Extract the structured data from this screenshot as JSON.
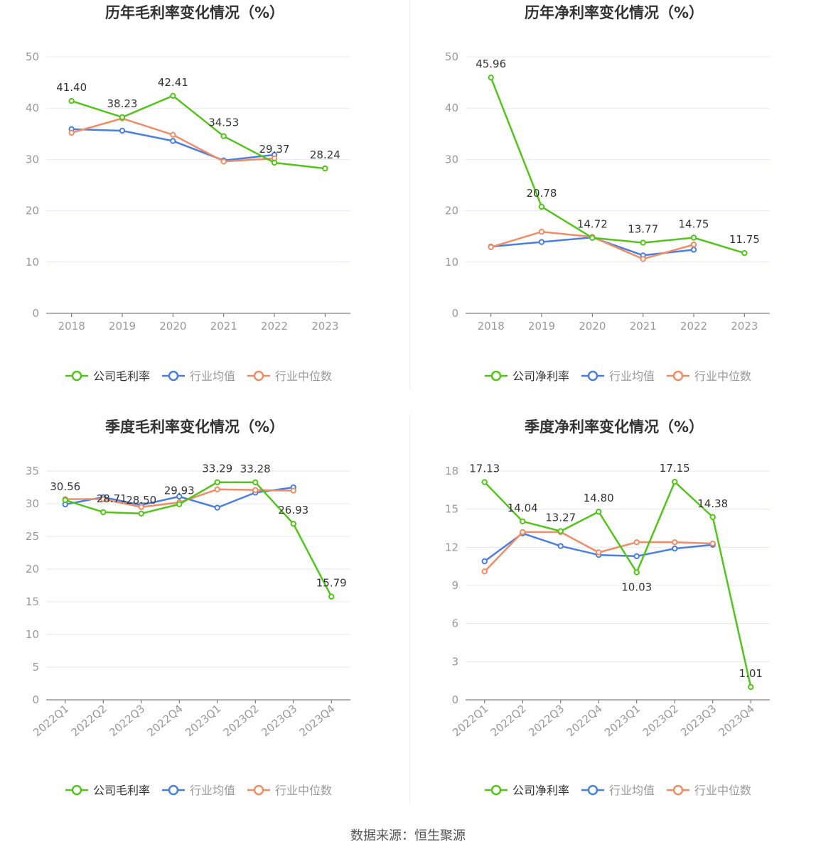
{
  "footer": {
    "source": "数据来源：恒生聚源"
  },
  "colors": {
    "company": "#52c41a",
    "avg": "#4a7fe0",
    "median": "#f08c66",
    "grid": "#e6e9f2",
    "axis": "#666666",
    "tick": "#999999",
    "label": "#333333"
  },
  "chart_data": [
    {
      "type": "line",
      "title": "历年毛利率变化情况（%）",
      "categories": [
        "2018",
        "2019",
        "2020",
        "2021",
        "2022",
        "2023"
      ],
      "ylim": [
        0,
        50
      ],
      "yticks": [
        0,
        10,
        20,
        30,
        40,
        50
      ],
      "series": [
        {
          "name": "公司毛利率",
          "values": [
            41.4,
            38.23,
            42.41,
            34.53,
            29.37,
            28.24
          ],
          "labels": [
            "41.40",
            "38.23",
            "42.41",
            "34.53",
            "29.37",
            "28.24"
          ]
        },
        {
          "name": "行业均值",
          "values": [
            35.9,
            35.6,
            33.6,
            29.8,
            30.9,
            null
          ]
        },
        {
          "name": "行业中位数",
          "values": [
            35.2,
            38.0,
            34.8,
            29.6,
            30.2,
            null
          ]
        }
      ],
      "legend": "bottom"
    },
    {
      "type": "line",
      "title": "历年净利率变化情况（%）",
      "categories": [
        "2018",
        "2019",
        "2020",
        "2021",
        "2022",
        "2023"
      ],
      "ylim": [
        0,
        50
      ],
      "yticks": [
        0,
        10,
        20,
        30,
        40,
        50
      ],
      "series": [
        {
          "name": "公司净利率",
          "values": [
            45.96,
            20.78,
            14.72,
            13.77,
            14.75,
            11.75
          ],
          "labels": [
            "45.96",
            "20.78",
            "14.72",
            "13.77",
            "14.75",
            "11.75"
          ]
        },
        {
          "name": "行业均值",
          "values": [
            13.0,
            13.9,
            14.8,
            11.3,
            12.4,
            null
          ]
        },
        {
          "name": "行业中位数",
          "values": [
            12.9,
            15.9,
            14.9,
            10.6,
            13.4,
            null
          ]
        }
      ],
      "legend": "bottom"
    },
    {
      "type": "line",
      "title": "季度毛利率变化情况（%）",
      "categories": [
        "2022Q1",
        "2022Q2",
        "2022Q3",
        "2022Q4",
        "2023Q1",
        "2023Q2",
        "2023Q3",
        "2023Q4"
      ],
      "ylim": [
        0,
        35
      ],
      "yticks": [
        0,
        5,
        10,
        15,
        20,
        25,
        30,
        35
      ],
      "series": [
        {
          "name": "公司毛利率",
          "values": [
            30.56,
            28.71,
            28.5,
            29.93,
            33.29,
            33.28,
            26.93,
            15.79
          ],
          "labels": [
            "30.56",
            "28.71",
            "28.50",
            "29.93",
            "33.29",
            "33.28",
            "26.93",
            "15.79"
          ]
        },
        {
          "name": "行业均值",
          "values": [
            29.9,
            31.0,
            29.8,
            31.1,
            29.4,
            31.7,
            32.5,
            null
          ]
        },
        {
          "name": "行业中位数",
          "values": [
            30.7,
            30.7,
            29.5,
            30.2,
            32.2,
            32.1,
            32.0,
            null
          ]
        }
      ],
      "legend": "bottom"
    },
    {
      "type": "line",
      "title": "季度净利率变化情况（%）",
      "categories": [
        "2022Q1",
        "2022Q2",
        "2022Q3",
        "2022Q4",
        "2023Q1",
        "2023Q2",
        "2023Q3",
        "2023Q4"
      ],
      "ylim": [
        0,
        18
      ],
      "yticks": [
        0,
        3,
        6,
        9,
        12,
        15,
        18
      ],
      "series": [
        {
          "name": "公司净利率",
          "values": [
            17.13,
            14.04,
            13.27,
            14.8,
            10.03,
            17.15,
            14.38,
            1.01
          ],
          "labels": [
            "17.13",
            "14.04",
            "13.27",
            "14.80",
            "10.03",
            "17.15",
            "14.38",
            "1.01"
          ]
        },
        {
          "name": "行业均值",
          "values": [
            10.9,
            13.1,
            12.1,
            11.4,
            11.3,
            11.9,
            12.2,
            null
          ]
        },
        {
          "name": "行业中位数",
          "values": [
            10.1,
            13.2,
            13.2,
            11.6,
            12.4,
            12.4,
            12.3,
            null
          ]
        }
      ],
      "legend": "bottom"
    }
  ]
}
